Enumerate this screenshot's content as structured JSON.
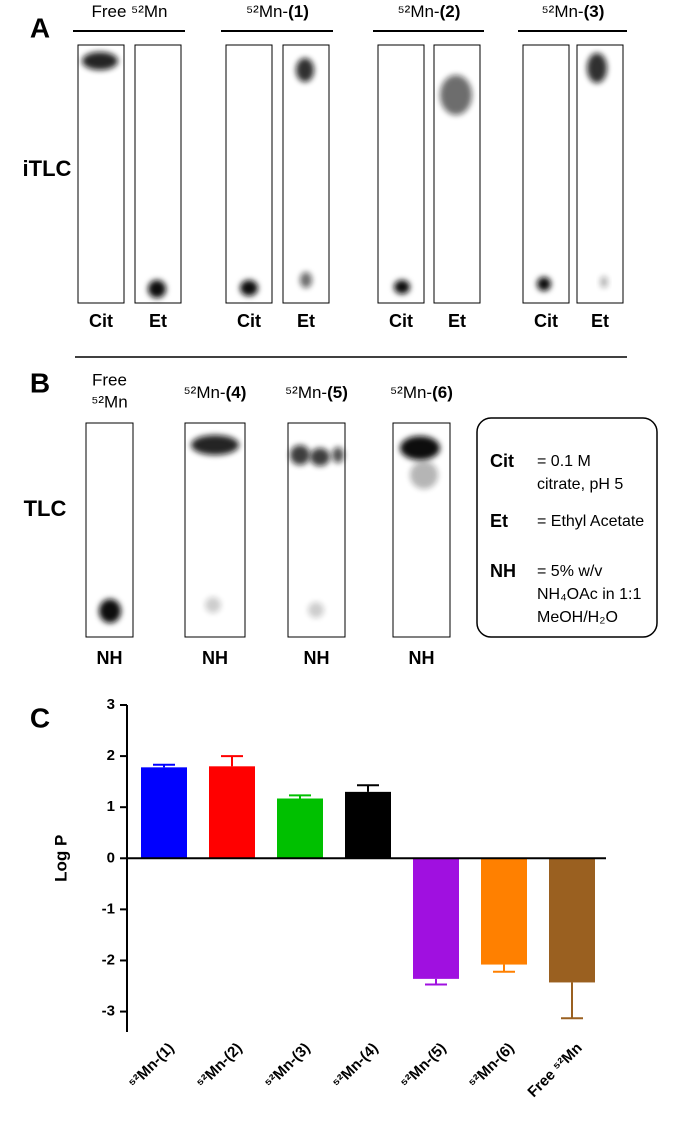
{
  "panel_a": {
    "label": "A",
    "row_label": "iTLC",
    "groups": [
      {
        "prefix": "Free ⁵²Mn",
        "lanes": [
          "Cit",
          "Et"
        ]
      },
      {
        "prefix": "⁵²Mn-",
        "bold": "(1)",
        "lanes": [
          "Cit",
          "Et"
        ]
      },
      {
        "prefix": "⁵²Mn-",
        "bold": "(2)",
        "lanes": [
          "Cit",
          "Et"
        ]
      },
      {
        "prefix": "⁵²Mn-",
        "bold": "(3)",
        "lanes": [
          "Cit",
          "Et"
        ]
      }
    ]
  },
  "panel_b": {
    "label": "B",
    "row_label": "TLC",
    "groups": [
      {
        "lines": [
          "Free",
          "⁵²Mn"
        ],
        "lanes": [
          "NH"
        ]
      },
      {
        "prefix": "⁵²Mn-",
        "bold": "(4)",
        "lanes": [
          "NH"
        ]
      },
      {
        "prefix": "⁵²Mn-",
        "bold": "(5)",
        "lanes": [
          "NH"
        ]
      },
      {
        "prefix": "⁵²Mn-",
        "bold": "(6)",
        "lanes": [
          "NH"
        ]
      }
    ],
    "legend": [
      {
        "key": "Cit",
        "lines": [
          "= 0.1 M",
          "citrate, pH 5"
        ]
      },
      {
        "key": "Et",
        "lines": [
          "= Ethyl Acetate"
        ]
      },
      {
        "key": "NH",
        "lines": [
          "= 5% w/v",
          "NH₄OAc in 1:1",
          "MeOH/H₂O"
        ]
      }
    ]
  },
  "chart_data": {
    "type": "bar",
    "panel_label": "C",
    "y_label": "Log P",
    "categories": [
      "⁵²Mn-(1)",
      "⁵²Mn-(2)",
      "⁵²Mn-(3)",
      "⁵²Mn-(4)",
      "⁵²Mn-(5)",
      "⁵²Mn-(6)",
      "Free ⁵²Mn"
    ],
    "values": [
      1.78,
      1.8,
      1.17,
      1.3,
      -2.36,
      -2.08,
      -2.43
    ],
    "errors": [
      0.05,
      0.2,
      0.06,
      0.13,
      0.11,
      0.14,
      0.7
    ],
    "colors": [
      "#0000ff",
      "#ff0000",
      "#00c000",
      "#000000",
      "#a010e0",
      "#ff8000",
      "#9a6020"
    ],
    "ylim": [
      -3.4,
      3
    ],
    "yticks": [
      -3,
      -2,
      -1,
      0,
      1,
      2,
      3
    ]
  }
}
